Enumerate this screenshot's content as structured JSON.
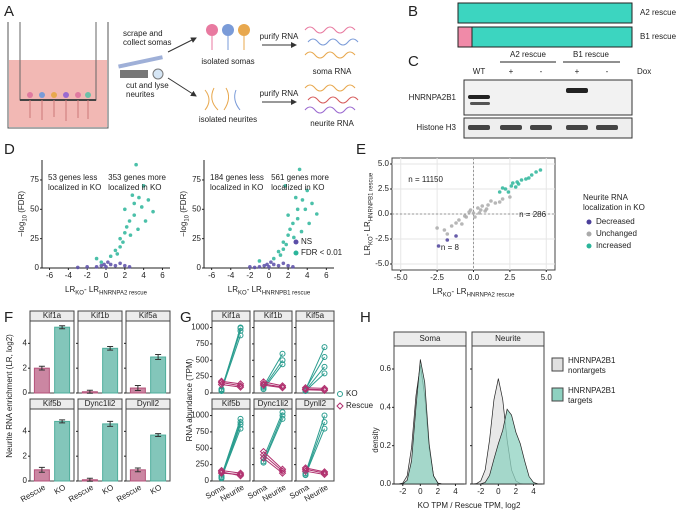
{
  "panel_labels": [
    "A",
    "B",
    "C",
    "D",
    "E",
    "F",
    "G",
    "H"
  ],
  "schematic": {
    "steps": [
      [
        "scrape and",
        "collect somas"
      ],
      [
        "cut and lyse",
        "neurites"
      ]
    ],
    "fractions": [
      "isolated somas",
      "isolated neurites"
    ],
    "purify": [
      "purify RNA",
      "purify RNA"
    ],
    "products": [
      "soma RNA",
      "neurite RNA"
    ]
  },
  "construct": {
    "labels": [
      "A2 rescue",
      "B1 rescue"
    ]
  },
  "blot": {
    "groups": [
      "A2 rescue",
      "B1 rescue"
    ],
    "lanes": [
      "WT",
      "+",
      "-",
      "+",
      "-"
    ],
    "dox": "Dox",
    "rows": [
      "HNRNPA2B1",
      "Histone H3"
    ]
  },
  "chart_data": [
    {
      "type": "scatter",
      "xlabel": [
        "LR",
        "KO",
        "- LR",
        "HNRNPA2 rescue"
      ],
      "ylabel": [
        "−log",
        "10",
        " (FDR)"
      ],
      "xlim": [
        -6.8,
        6.8
      ],
      "xticks": [
        -6,
        -4,
        -2,
        0,
        2,
        4,
        6
      ],
      "ylim": [
        0,
        92
      ],
      "yticks": [
        0,
        25,
        50,
        75
      ],
      "grid": false,
      "annotations": [
        {
          "lines": [
            "53 genes less",
            "localized in KO"
          ]
        },
        {
          "lines": [
            "353 genes more",
            "localized in KO"
          ]
        }
      ],
      "series": [
        {
          "color": "#5b4ea8",
          "x": [
            -1,
            -0.5,
            0,
            0.5,
            1,
            1.5,
            -2,
            2,
            0.2,
            -0.2,
            -3,
            2.5
          ],
          "y": [
            1,
            2,
            1,
            3,
            2,
            4,
            1,
            2,
            5,
            3,
            0.5,
            1
          ]
        },
        {
          "color": "#2bb59a",
          "x": [
            0.5,
            1,
            1.5,
            2,
            2.5,
            3,
            3.5,
            4,
            2,
            3,
            4.5,
            5,
            1.5,
            2.2,
            3.2,
            2.8,
            1.2,
            -1,
            -0.5,
            3.8,
            2.6,
            1.8,
            4.2,
            3.4
          ],
          "y": [
            10,
            15,
            25,
            30,
            40,
            55,
            60,
            70,
            50,
            45,
            58,
            48,
            18,
            35,
            88,
            62,
            12,
            8,
            5,
            52,
            28,
            22,
            40,
            33
          ]
        }
      ]
    },
    {
      "type": "scatter",
      "xlabel": [
        "LR",
        "KO",
        "- LR",
        "HNRNPB1 rescue"
      ],
      "ylabel": [
        "−log",
        "10",
        " (FDR)"
      ],
      "xlim": [
        -6.8,
        6.8
      ],
      "xticks": [
        -6,
        -4,
        -2,
        0,
        2,
        4,
        6
      ],
      "ylim": [
        0,
        92
      ],
      "yticks": [
        0,
        25,
        50,
        75
      ],
      "grid": false,
      "annotations": [
        {
          "lines": [
            "184 genes less",
            "localized in KO"
          ]
        },
        {
          "lines": [
            "561 genes more",
            "localized in KO"
          ]
        }
      ],
      "legend": "bottom-right",
      "series": [
        {
          "name": "NS",
          "color": "#5b4ea8",
          "x": [
            -1,
            -0.5,
            0,
            0.5,
            1,
            1.5,
            -2,
            2,
            0.2,
            -0.2,
            2.5,
            -1.5
          ],
          "y": [
            1,
            2,
            1,
            3,
            2,
            4,
            1,
            2,
            5,
            3,
            1,
            0.5
          ]
        },
        {
          "name": "FDR < 0.01",
          "color": "#2bb59a",
          "x": [
            0.5,
            1,
            1.5,
            2,
            2.5,
            3,
            3.5,
            4,
            2,
            3,
            4.5,
            5,
            1.5,
            2.2,
            3.2,
            2.8,
            1.2,
            -1,
            3.8,
            2.6,
            1.8,
            4.2,
            3.4,
            1.7
          ],
          "y": [
            8,
            14,
            22,
            28,
            38,
            50,
            58,
            66,
            45,
            42,
            55,
            46,
            16,
            33,
            84,
            60,
            11,
            6,
            50,
            26,
            20,
            38,
            31,
            70
          ]
        }
      ]
    },
    {
      "type": "scatter",
      "xlabel": [
        "LR",
        "KO",
        "- LR",
        "HNRNPA2 rescue"
      ],
      "ylabel": [
        "LR",
        "KO",
        "- LR",
        "HNRNPB1 rescue"
      ],
      "xlim": [
        -5.6,
        5.6
      ],
      "xticks": [
        {
          "value": -5,
          "label": "-5.0"
        },
        -2.5,
        {
          "value": 0,
          "label": "0.0"
        },
        2.5,
        {
          "value": 5,
          "label": "5.0"
        }
      ],
      "ylim": [
        -5.6,
        5.6
      ],
      "yticks": [
        {
          "value": -5,
          "label": "-5.0"
        },
        -2.5,
        {
          "value": 0,
          "label": "0.0"
        },
        2.5,
        {
          "value": 5,
          "label": "5.0"
        }
      ],
      "grid": true,
      "ref_line": 0,
      "annotations": [
        {
          "text": "n = 11150",
          "color": "#aaaaaa"
        },
        {
          "text": "n = 286",
          "color": "#2bb59a"
        },
        {
          "text": "n = 8",
          "color": "#4b3f9a"
        }
      ],
      "legend_title": [
        "Neurite RNA",
        "localization in KO"
      ],
      "legend": "right",
      "series": [
        {
          "name": "Decreased",
          "color": "#4b3f9a",
          "x": [
            -1.8,
            -1.2,
            -2.4
          ],
          "y": [
            -2.6,
            -2.2,
            -3.2
          ]
        },
        {
          "name": "Unchanged",
          "color": "#aaaaaa",
          "x": [
            -2,
            -1.5,
            -1,
            -0.5,
            0,
            0.5,
            1,
            1.5,
            2,
            -0.8,
            0.3,
            0.8,
            -0.3,
            1.2,
            -1.2,
            0.6,
            -0.6,
            0.1,
            1.8,
            -1.8,
            0.9,
            -0.2,
            0.4,
            2.5,
            -2.5
          ],
          "y": [
            -1.6,
            -1.2,
            -0.6,
            -0.3,
            0.1,
            0.4,
            0.9,
            1.1,
            1.5,
            -1,
            0.6,
            0.3,
            0.2,
            1.3,
            -0.9,
            0.8,
            -0.2,
            -0.3,
            1.2,
            -2,
            0.5,
            0.4,
            0.1,
            1.7,
            -1.4
          ]
        },
        {
          "name": "Increased",
          "color": "#2bb59a",
          "x": [
            1.8,
            2.2,
            2.6,
            3,
            3.3,
            3.6,
            4,
            4.3,
            2.4,
            2.9,
            3.8,
            2,
            3.1,
            4.6,
            2.7
          ],
          "y": [
            2.2,
            2.5,
            2.8,
            3.2,
            3.4,
            3.5,
            3.9,
            4.2,
            2.2,
            2.7,
            3.6,
            2.6,
            3,
            4.4,
            3.1
          ]
        }
      ]
    },
    {
      "type": "bar",
      "ylabel": "Neurite RNA enrichment (LR, log2)",
      "categories": [
        "Rescue",
        "KO"
      ],
      "colors": [
        "#b5527a",
        "#4fae9c"
      ],
      "ylim": [
        0,
        5.8
      ],
      "yticks": [
        0,
        2,
        4
      ],
      "facets": [
        {
          "title": "Kif1a",
          "values": [
            2.0,
            5.3
          ],
          "errors": [
            0.15,
            0.12
          ]
        },
        {
          "title": "Kif1b",
          "values": [
            0.1,
            3.6
          ],
          "errors": [
            0.12,
            0.15
          ]
        },
        {
          "title": "Kif5a",
          "values": [
            0.4,
            2.9
          ],
          "errors": [
            0.2,
            0.2
          ]
        },
        {
          "title": "Kif5b",
          "values": [
            0.9,
            4.8
          ],
          "errors": [
            0.2,
            0.12
          ]
        },
        {
          "title": "Dync1li2",
          "values": [
            0.1,
            4.6
          ],
          "errors": [
            0.12,
            0.2
          ]
        },
        {
          "title": "Dynll2",
          "values": [
            0.9,
            3.7
          ],
          "errors": [
            0.15,
            0.12
          ]
        }
      ]
    },
    {
      "type": "line",
      "ylabel": "RNA abundance (TPM)",
      "categories": [
        "Soma",
        "Neurite"
      ],
      "ylim": [
        0,
        1100
      ],
      "yticks": [
        0,
        250,
        500,
        750,
        1000
      ],
      "series": [
        {
          "name": "KO",
          "color": "#2a9d8f"
        },
        {
          "name": "Rescue",
          "color": "#b0306e"
        }
      ],
      "facets": [
        {
          "title": "Kif1a",
          "lines": [
            [
              [
                40,
                880
              ],
              [
                60,
                950
              ],
              [
                30,
                990
              ],
              [
                50,
                1000
              ]
            ],
            [
              [
                160,
                110
              ],
              [
                130,
                90
              ],
              [
                180,
                140
              ]
            ]
          ]
        },
        {
          "title": "Kif1b",
          "lines": [
            [
              [
                80,
                500
              ],
              [
                60,
                440
              ],
              [
                100,
                600
              ]
            ],
            [
              [
                140,
                90
              ],
              [
                120,
                80
              ],
              [
                170,
                110
              ]
            ]
          ]
        },
        {
          "title": "Kif5a",
          "lines": [
            [
              [
                40,
                400
              ],
              [
                60,
                550
              ],
              [
                50,
                700
              ],
              [
                30,
                300
              ]
            ],
            [
              [
                60,
                50
              ],
              [
                80,
                70
              ],
              [
                50,
                40
              ]
            ]
          ]
        },
        {
          "title": "Kif5b",
          "lines": [
            [
              [
                50,
                800
              ],
              [
                80,
                950
              ],
              [
                60,
                900
              ],
              [
                40,
                860
              ]
            ],
            [
              [
                140,
                80
              ],
              [
                120,
                100
              ],
              [
                160,
                120
              ]
            ]
          ]
        },
        {
          "title": "Dync1li2",
          "lines": [
            [
              [
                300,
                1000
              ],
              [
                280,
                950
              ],
              [
                350,
                1050
              ]
            ],
            [
              [
                400,
                150
              ],
              [
                350,
                120
              ],
              [
                450,
                180
              ]
            ]
          ]
        },
        {
          "title": "Dynll2",
          "lines": [
            [
              [
                100,
                900
              ],
              [
                120,
                1000
              ],
              [
                90,
                800
              ]
            ],
            [
              [
                180,
                120
              ],
              [
                150,
                100
              ],
              [
                200,
                140
              ]
            ]
          ]
        }
      ]
    },
    {
      "type": "density",
      "xlabel": "KO TPM / Rescue TPM, log2",
      "ylabel": "density",
      "xlim": [
        -3,
        5.2
      ],
      "xticks": [
        -2,
        0,
        2,
        4
      ],
      "ylim": [
        0,
        0.72
      ],
      "yticks": [
        {
          "value": 0,
          "label": "0.0"
        },
        0.2,
        0.4,
        0.6
      ],
      "x": [
        -3,
        -2.5,
        -2,
        -1.5,
        -1,
        -0.5,
        0,
        0.5,
        1,
        1.5,
        2,
        2.5,
        3,
        3.5,
        4,
        4.5,
        5
      ],
      "series": [
        {
          "name": [
            "HNRNPA2B1",
            "nontargets"
          ],
          "color": "#e0e0e0"
        },
        {
          "name": [
            "HNRNPA2B1",
            "targets"
          ],
          "color": "#8ed1c0"
        }
      ],
      "facets": [
        {
          "title": "Soma",
          "values": [
            [
              0,
              0,
              0.005,
              0.043,
              0.19,
              0.46,
              0.62,
              0.46,
              0.19,
              0.043,
              0.005,
              0,
              0,
              0,
              0,
              0,
              0
            ],
            [
              0,
              0,
              0.001,
              0.019,
              0.12,
              0.4,
              0.65,
              0.53,
              0.21,
              0.043,
              0.004,
              0,
              0,
              0,
              0,
              0,
              0
            ]
          ]
        },
        {
          "title": "Neurite",
          "values": [
            [
              0,
              0.002,
              0.016,
              0.074,
              0.23,
              0.44,
              0.55,
              0.44,
              0.23,
              0.074,
              0.016,
              0.002,
              0,
              0,
              0,
              0,
              0
            ],
            [
              0,
              0,
              0.001,
              0.008,
              0.045,
              0.13,
              0.21,
              0.28,
              0.39,
              0.36,
              0.27,
              0.21,
              0.12,
              0.039,
              0.008,
              0.001,
              0
            ]
          ]
        }
      ]
    }
  ]
}
